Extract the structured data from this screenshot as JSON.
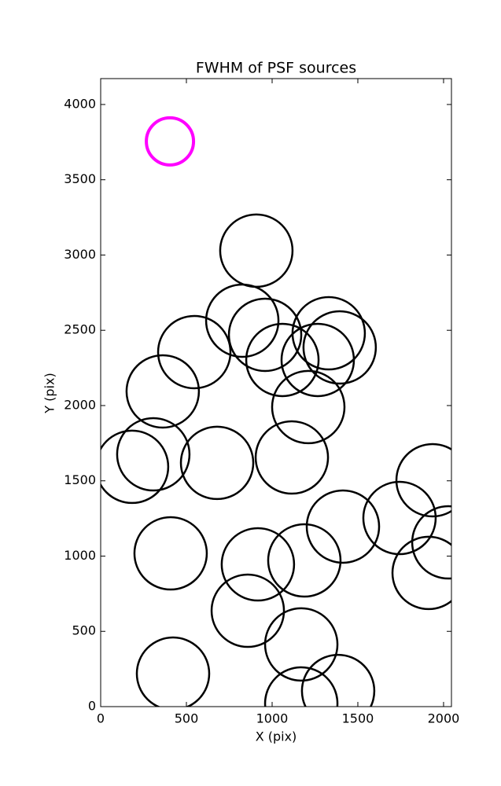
{
  "chart_data": {
    "type": "scatter",
    "title": "FWHM of PSF sources",
    "x_label": "X (pix)",
    "y_label": "Y (pix)",
    "xlim": [
      0,
      2046
    ],
    "ylim": [
      0,
      4172
    ],
    "xticks": [
      0,
      500,
      1000,
      1500,
      2000
    ],
    "yticks": [
      0,
      500,
      1000,
      1500,
      2000,
      2500,
      3000,
      3500,
      4000
    ],
    "series": [
      {
        "color": "#000000",
        "x": [
          908,
          826,
          959,
          1330,
          1394,
          546,
          1060,
          1266,
          362,
          1211,
          183,
          307,
          679,
          1115,
          1936,
          1743,
          1413,
          2028,
          408,
          1913,
          917,
          1188,
          858,
          1170,
          422,
          1385,
          1170
        ],
        "values": [
          3029,
          2564,
          2470,
          2480,
          2386,
          2355,
          2303,
          2303,
          2094,
          1990,
          1593,
          1676,
          1619,
          1655,
          1504,
          1253,
          1196,
          1091,
          1018,
          888,
          945,
          971,
          637,
          413,
          219,
          104,
          21
        ]
      },
      {
        "color": "#ff00ff",
        "x": [
          404
        ],
        "values": [
          3755
        ]
      }
    ]
  }
}
